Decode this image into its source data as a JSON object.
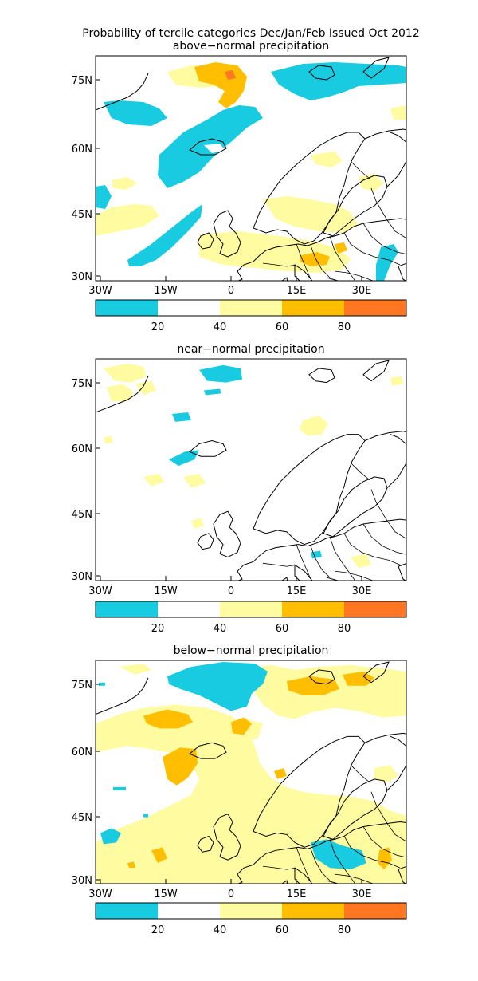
{
  "figure": {
    "title": "Probability of tercile categories Dec/Jan/Feb Issued Oct 2012"
  },
  "axes": {
    "lat_labels": [
      "75N",
      "60N",
      "45N",
      "30N"
    ],
    "lon_labels": [
      "30W",
      "15W",
      "0",
      "15E",
      "30E"
    ]
  },
  "colorbar": {
    "tick_labels": [
      "20",
      "40",
      "60",
      "80"
    ],
    "bins": [
      {
        "range": "0-20",
        "color": "#19CBE0"
      },
      {
        "range": "20-40",
        "color": "#FFFFFF"
      },
      {
        "range": "40-60",
        "color": "#FFFBA0"
      },
      {
        "range": "60-80",
        "color": "#FFBF00"
      },
      {
        "range": "80-100",
        "color": "#FF7722"
      }
    ]
  },
  "panels": [
    {
      "subtitle": "above−normal precipitation"
    },
    {
      "subtitle": "near−normal precipitation"
    },
    {
      "subtitle": "below−normal precipitation"
    }
  ]
}
